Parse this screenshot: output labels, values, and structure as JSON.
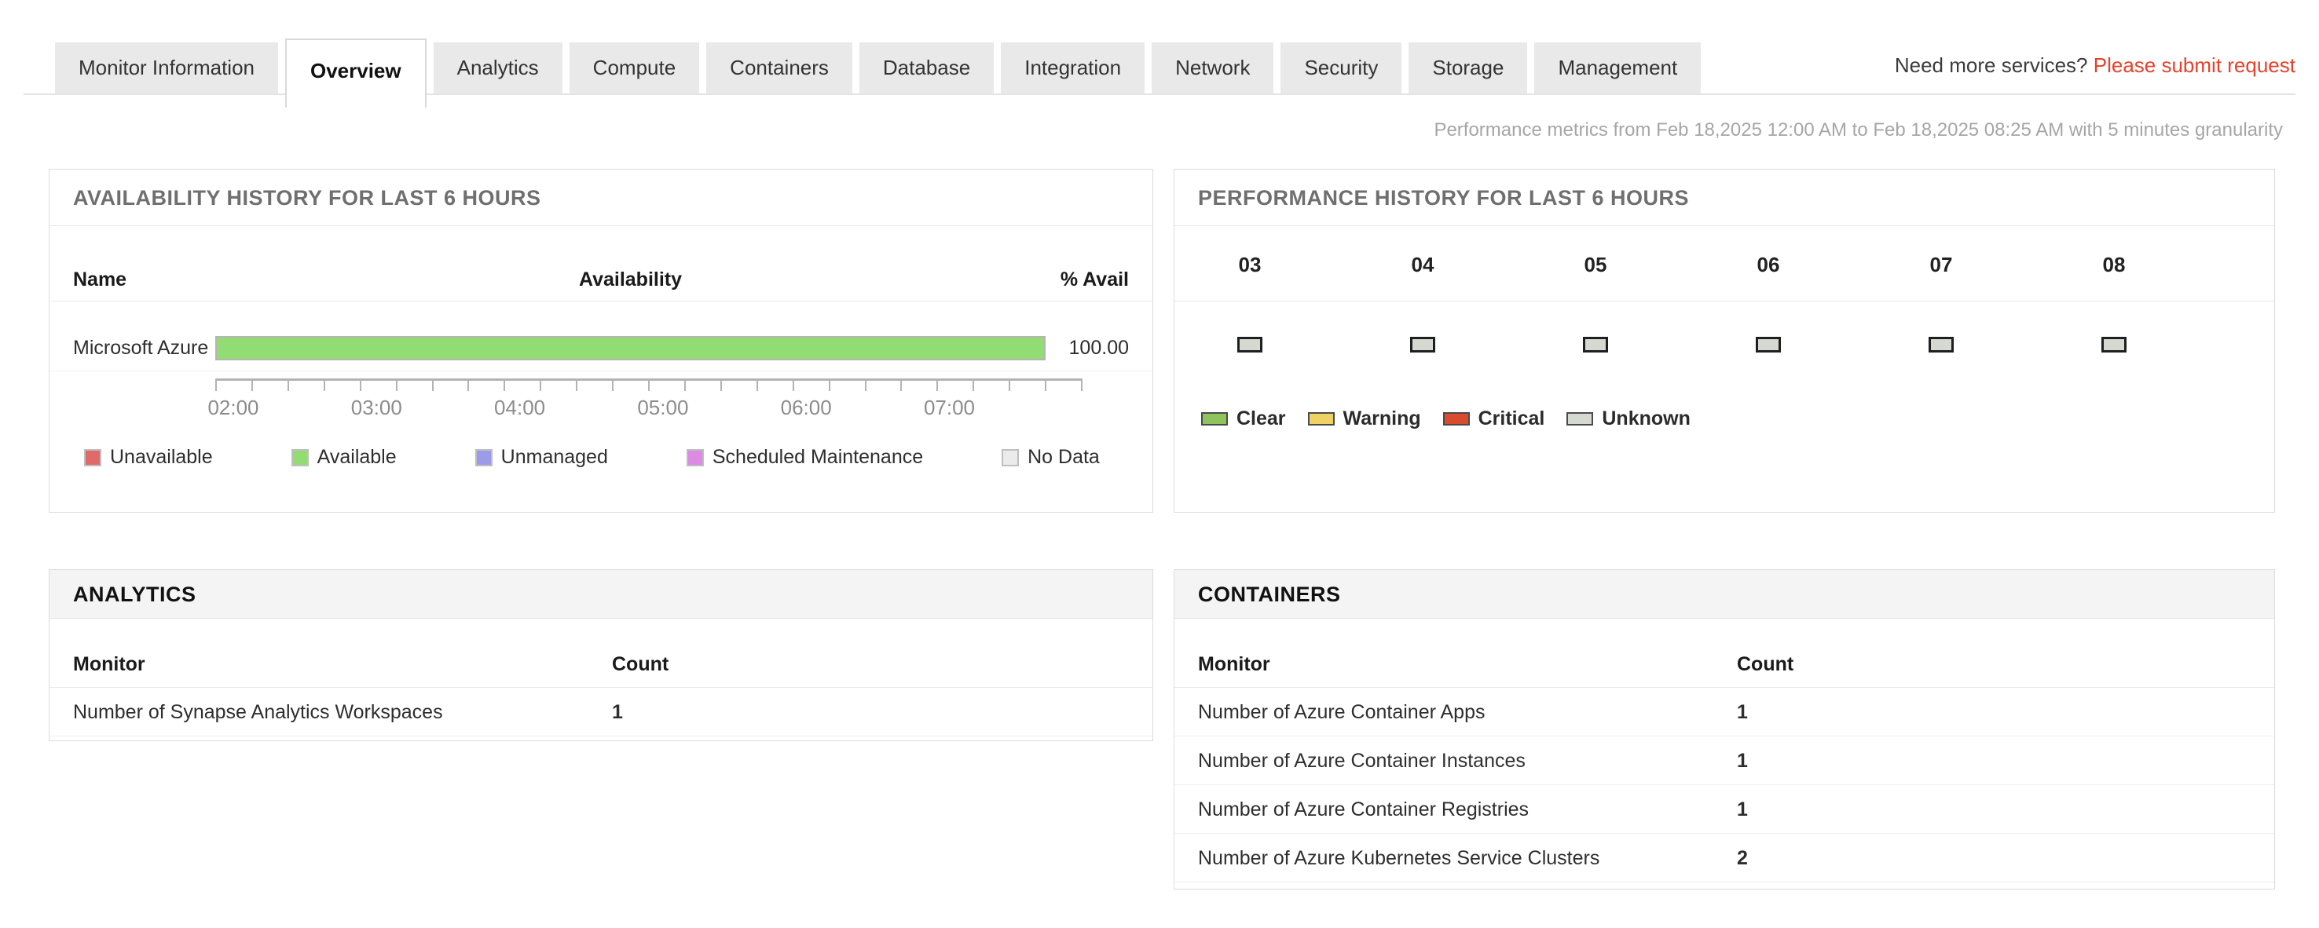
{
  "tab_bar": {
    "tabs": [
      {
        "label": "Monitor Information",
        "active": false
      },
      {
        "label": "Overview",
        "active": true
      },
      {
        "label": "Analytics",
        "active": false
      },
      {
        "label": "Compute",
        "active": false
      },
      {
        "label": "Containers",
        "active": false
      },
      {
        "label": "Database",
        "active": false
      },
      {
        "label": "Integration",
        "active": false
      },
      {
        "label": "Network",
        "active": false
      },
      {
        "label": "Security",
        "active": false
      },
      {
        "label": "Storage",
        "active": false
      },
      {
        "label": "Management",
        "active": false
      }
    ]
  },
  "top_right": {
    "prompt": "Need more services?",
    "link_label": "Please submit request",
    "link_color": "#e8402c"
  },
  "metrics_note": "Performance metrics from Feb 18,2025 12:00 AM to Feb 18,2025 08:25 AM with 5 minutes granularity",
  "availability_panel": {
    "title": "AVAILABILITY HISTORY FOR LAST 6 HOURS",
    "col_name": "Name",
    "col_availability": "Availability",
    "col_pct": "% Avail",
    "row": {
      "name": "Microsoft Azure",
      "pct": "100.00",
      "bar_color": "#92dc74"
    },
    "x_ticks": [
      "02:00",
      "03:00",
      "04:00",
      "05:00",
      "06:00",
      "07:00"
    ],
    "legend": [
      {
        "label": "Unavailable",
        "color": "#e06a6a"
      },
      {
        "label": "Available",
        "color": "#92dc74"
      },
      {
        "label": "Unmanaged",
        "color": "#9b9be8"
      },
      {
        "label": "Scheduled Maintenance",
        "color": "#dd8ae4"
      },
      {
        "label": "No Data",
        "color": "#ebebeb"
      }
    ]
  },
  "performance_panel": {
    "title": "PERFORMANCE HISTORY FOR LAST 6 HOURS",
    "columns": [
      {
        "hour": "03",
        "state": "Unknown",
        "color": "#d6d8d2"
      },
      {
        "hour": "04",
        "state": "Unknown",
        "color": "#d6d8d2"
      },
      {
        "hour": "05",
        "state": "Unknown",
        "color": "#d6d8d2"
      },
      {
        "hour": "06",
        "state": "Unknown",
        "color": "#d6d8d2"
      },
      {
        "hour": "07",
        "state": "Unknown",
        "color": "#d6d8d2"
      },
      {
        "hour": "08",
        "state": "Unknown",
        "color": "#d6d8d2"
      }
    ],
    "legend": [
      {
        "label": "Clear",
        "color": "#8fc45c"
      },
      {
        "label": "Warning",
        "color": "#f0d164"
      },
      {
        "label": "Critical",
        "color": "#d94a2e"
      },
      {
        "label": "Unknown",
        "color": "#d6d8d2"
      }
    ]
  },
  "analytics_panel": {
    "title": "ANALYTICS",
    "col_monitor": "Monitor",
    "col_count": "Count",
    "rows": [
      {
        "monitor": "Number of Synapse Analytics Workspaces",
        "count": "1"
      }
    ]
  },
  "containers_panel": {
    "title": "CONTAINERS",
    "col_monitor": "Monitor",
    "col_count": "Count",
    "rows": [
      {
        "monitor": "Number of Azure Container Apps",
        "count": "1"
      },
      {
        "monitor": "Number of Azure Container Instances",
        "count": "1"
      },
      {
        "monitor": "Number of Azure Container Registries",
        "count": "1"
      },
      {
        "monitor": "Number of Azure Kubernetes Service Clusters",
        "count": "2"
      }
    ]
  },
  "chart_data": [
    {
      "type": "bar",
      "title": "AVAILABILITY HISTORY FOR LAST 6 HOURS",
      "orientation": "horizontal-timeline",
      "categories": [
        "Microsoft Azure"
      ],
      "values": [
        100.0
      ],
      "value_label": "% Avail",
      "x_tick_labels": [
        "02:00",
        "03:00",
        "04:00",
        "05:00",
        "06:00",
        "07:00"
      ],
      "x_minor_ticks_minutes": 15,
      "series_state": "Available",
      "legend_entries": [
        "Unavailable",
        "Available",
        "Unmanaged",
        "Scheduled Maintenance",
        "No Data"
      ],
      "legend_position": "bottom",
      "grid": false
    },
    {
      "type": "heatmap",
      "title": "PERFORMANCE HISTORY FOR LAST 6 HOURS",
      "categories": [
        "03",
        "04",
        "05",
        "06",
        "07",
        "08"
      ],
      "values": [
        "Unknown",
        "Unknown",
        "Unknown",
        "Unknown",
        "Unknown",
        "Unknown"
      ],
      "legend_entries": [
        "Clear",
        "Warning",
        "Critical",
        "Unknown"
      ],
      "legend_position": "bottom",
      "grid": false
    }
  ]
}
